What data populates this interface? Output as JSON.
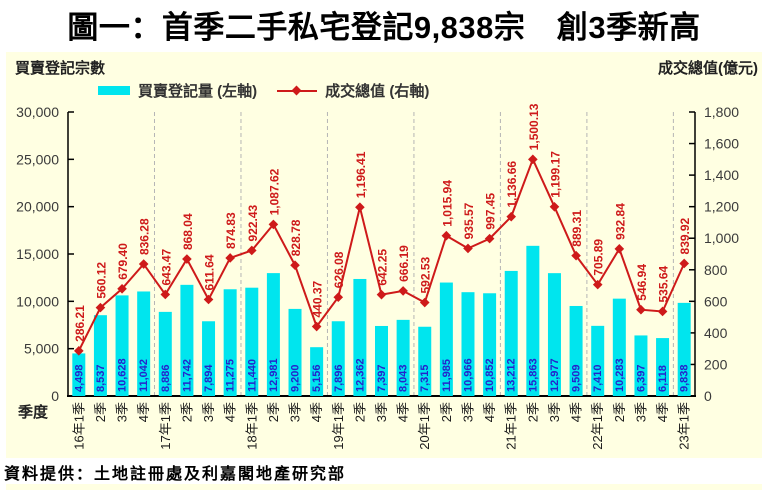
{
  "title": "圖一：首季二手私宅登記9,838宗　創3季新高",
  "left_axis_title": "買賣登記宗數",
  "right_axis_title": "成交總值(億元)",
  "x_axis_title": "季度",
  "source": "資料提供：土地註冊處及利嘉閣地產研究部",
  "colors": {
    "panel_bg": "#FFFFE2",
    "bar": "#00E5EE",
    "bar_label": "#2424CC",
    "line": "#CE1A1A",
    "axis": "#000000",
    "tick_label": "#3A3A3A",
    "category_label": "#1A1A1A",
    "gridline": "#B5B5B5"
  },
  "chart_data": {
    "type": "bar+line combo",
    "legend_position": "top",
    "grid": "vertical dashed lines at year boundaries",
    "categories": [
      "16年1季",
      "2季",
      "3季",
      "4季",
      "17年1季",
      "2季",
      "3季",
      "4季",
      "18年1季",
      "2季",
      "3季",
      "4季",
      "19年1季",
      "2季",
      "3季",
      "4季",
      "20年1季",
      "2季",
      "3季",
      "4季",
      "21年1季",
      "2季",
      "3季",
      "4季",
      "22年1季",
      "2季",
      "3季",
      "4季",
      "23年1季"
    ],
    "series": [
      {
        "name": "買賣登記量 (左軸)",
        "type": "bar",
        "axis": "left",
        "values": [
          4498,
          8537,
          10628,
          11042,
          8886,
          11742,
          7894,
          11275,
          11440,
          12981,
          9200,
          5156,
          7896,
          12362,
          7397,
          8043,
          7315,
          11985,
          10966,
          10852,
          13212,
          15863,
          12977,
          9509,
          7410,
          10283,
          6397,
          6118,
          9838
        ]
      },
      {
        "name": "成交總值 (右軸)",
        "type": "line",
        "axis": "right",
        "values": [
          286.21,
          560.12,
          679.4,
          836.28,
          643.47,
          868.04,
          611.64,
          874.83,
          922.43,
          1087.62,
          828.78,
          440.37,
          626.08,
          1196.41,
          642.25,
          666.19,
          592.53,
          1015.94,
          935.57,
          997.45,
          1136.66,
          1500.13,
          1199.17,
          889.31,
          705.89,
          932.84,
          546.94,
          535.64,
          839.92
        ]
      }
    ],
    "left_axis": {
      "min": 0,
      "max": 30000,
      "step": 5000,
      "ticks": [
        "0",
        "5,000",
        "10,000",
        "15,000",
        "20,000",
        "25,000",
        "30,000"
      ]
    },
    "right_axis": {
      "min": 0,
      "max": 1800,
      "step": 200,
      "ticks": [
        "0",
        "200",
        "400",
        "600",
        "800",
        "1,000",
        "1,200",
        "1,400",
        "1,600",
        "1,800"
      ]
    }
  }
}
